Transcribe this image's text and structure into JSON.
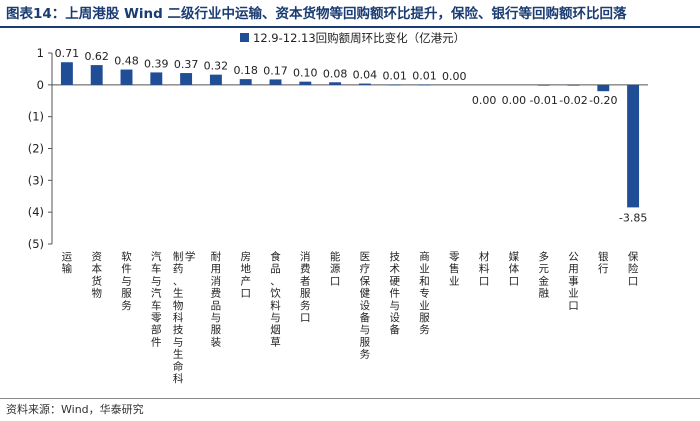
{
  "title": "图表14：上周港股 Wind 二级行业中运输、资本货物等回购额环比提升，保险、银行等回购额环比回落",
  "source": "资料来源：Wind，华泰研究",
  "colors": {
    "bar": "#1f4e96",
    "title": "#1a3c72",
    "axis": "#555555"
  },
  "chart_data": {
    "type": "bar",
    "categories": [
      "运输",
      "资本货物",
      "软件与服务",
      "汽车与汽车零部件",
      "制药、生物科技与生命科学",
      "耐用消费品与服装",
      "房地产",
      "食品、饮料与烟草",
      "消费者服务",
      "能源",
      "医疗保健设备与服务",
      "技术硬件与设备",
      "商业和专业服务",
      "零售业",
      "材料",
      "媒体",
      "多元金融",
      "公用事业",
      "银行",
      "保险"
    ],
    "category_label_text": [
      "运输",
      "资本货物",
      "软件与服务",
      "汽车与汽车零部件",
      "制药、生物科技与生命科学",
      "耐用消费品与服装",
      "房地产口",
      "食品、饮料与烟草",
      "消费者服务口",
      "能源口",
      "医疗保健设备与服务",
      "技术硬件与设备",
      "商业和专业服务",
      "零售业",
      "材料口",
      "媒体口",
      "多元金融",
      "公用事业口",
      "银行",
      "保险口"
    ],
    "series": [
      {
        "name": "12.9-12.13回购额周环比变化（亿港元）",
        "values": [
          0.71,
          0.62,
          0.48,
          0.39,
          0.37,
          0.32,
          0.18,
          0.17,
          0.1,
          0.08,
          0.04,
          0.01,
          0.01,
          0.0,
          0.0,
          0.0,
          -0.01,
          -0.02,
          -0.2,
          -3.85
        ]
      }
    ],
    "data_labels": [
      "0.71",
      "0.62",
      "0.48",
      "0.39",
      "0.37",
      "0.32",
      "0.18",
      "0.17",
      "0.10",
      "0.08",
      "0.04",
      "0.01",
      "0.01",
      "0.00",
      "0.00",
      "0.00",
      "-0.01",
      "-0.02",
      "-0.20",
      "-3.85"
    ],
    "ylim": [
      -5,
      1
    ],
    "yticks": [
      1,
      0,
      -1,
      -2,
      -3,
      -4,
      -5
    ],
    "ytick_labels": [
      "1",
      "0",
      "(1)",
      "(2)",
      "(3)",
      "(4)",
      "(5)"
    ],
    "grid": false,
    "legend_position": "top-right"
  }
}
